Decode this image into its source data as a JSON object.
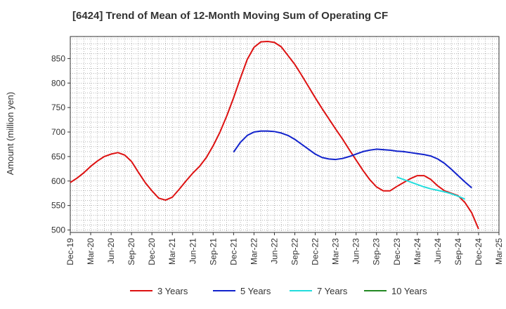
{
  "chart_data": {
    "type": "line",
    "title": "[6424]  Trend of Mean of 12-Month Moving Sum of Operating CF",
    "xlabel": "",
    "ylabel": "Amount (million yen)",
    "ylim": [
      495,
      895
    ],
    "yticks": [
      500,
      550,
      600,
      650,
      700,
      750,
      800,
      850
    ],
    "x_range": [
      "2019-12",
      "2025-03"
    ],
    "xticks": [
      "Dec-19",
      "Mar-20",
      "Jun-20",
      "Sep-20",
      "Dec-20",
      "Mar-21",
      "Jun-21",
      "Sep-21",
      "Dec-21",
      "Mar-22",
      "Jun-22",
      "Sep-22",
      "Dec-22",
      "Mar-23",
      "Jun-23",
      "Sep-23",
      "Dec-23",
      "Mar-24",
      "Jun-24",
      "Sep-24",
      "Dec-24",
      "Mar-25"
    ],
    "grid": true,
    "legend_position": "bottom",
    "series": [
      {
        "name": "3 Years",
        "color": "#dd1111",
        "start": "2019-12",
        "values": [
          597,
          606,
          617,
          630,
          641,
          650,
          655,
          658,
          653,
          640,
          618,
          597,
          580,
          565,
          561,
          567,
          583,
          600,
          616,
          630,
          648,
          672,
          700,
          733,
          770,
          810,
          848,
          873,
          884,
          885,
          883,
          874,
          856,
          838,
          816,
          793,
          770,
          748,
          727,
          706,
          686,
          664,
          643,
          622,
          603,
          588,
          580,
          580,
          589,
          597,
          605,
          611,
          611,
          603,
          590,
          580,
          575,
          570,
          556,
          535,
          502
        ]
      },
      {
        "name": "5 Years",
        "color": "#1122cc",
        "start": "2021-12",
        "values": [
          659,
          679,
          693,
          700,
          702,
          702,
          701,
          698,
          693,
          685,
          675,
          665,
          655,
          648,
          645,
          644,
          646,
          650,
          655,
          660,
          663,
          665,
          664,
          663,
          661,
          660,
          658,
          656,
          654,
          651,
          645,
          636,
          624,
          611,
          598,
          586
        ]
      },
      {
        "name": "7 Years",
        "color": "#22dddd",
        "start": "2023-12",
        "values": [
          608,
          603,
          598,
          593,
          588,
          584,
          581,
          578,
          574,
          569,
          563
        ]
      },
      {
        "name": "10 Years",
        "color": "#228822",
        "start": "2024-09",
        "values": []
      }
    ]
  }
}
